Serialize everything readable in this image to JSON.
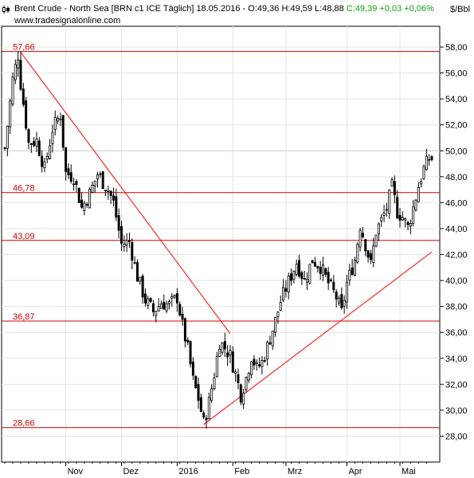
{
  "header": {
    "title": "Brent Crude - North Sea [BRN c1 ICE  Täglich] 18.05.2016 - O:49,36 H:49,59 L:48,88 ",
    "change": "C:49,39 +0,03 +0,06%",
    "source": "www.tradesignalonline.com",
    "unit": "$/Bbl"
  },
  "colors": {
    "candle_up": "#ffffff",
    "candle_down": "#000000",
    "level_line": "#cc0000",
    "trend_line": "#ff0000",
    "change_text": "#12a012"
  },
  "chart_data": {
    "type": "candlestick",
    "ylim": [
      26.0,
      59.6
    ],
    "yticks": [
      28,
      30,
      32,
      34,
      36,
      38,
      40,
      42,
      44,
      46,
      48,
      50,
      52,
      54,
      56,
      58
    ],
    "ytick_labels": [
      "28,00",
      "30,00",
      "32,00",
      "34,00",
      "36,00",
      "38,00",
      "40,00",
      "42,00",
      "44,00",
      "46,00",
      "48,00",
      "50,00",
      "52,00",
      "54,00",
      "56,00",
      "58,00"
    ],
    "months": [
      {
        "label": "Nov",
        "x": 24
      },
      {
        "label": "Dez",
        "x": 45
      },
      {
        "label": "2016",
        "x": 66
      },
      {
        "label": "Feb",
        "x": 87
      },
      {
        "label": "Mrz",
        "x": 107
      },
      {
        "label": "Apr",
        "x": 130
      },
      {
        "label": "Mai",
        "x": 150
      }
    ],
    "xlim": [
      1,
      162
    ],
    "levels": [
      {
        "value": 57.66,
        "label": "57,66"
      },
      {
        "value": 46.78,
        "label": "46,78"
      },
      {
        "value": 43.09,
        "label": "43,09"
      },
      {
        "value": 36.87,
        "label": "36,87"
      },
      {
        "value": 28.66,
        "label": "28,66"
      }
    ],
    "trendlines": [
      {
        "x1": 7,
        "y1": 57.6,
        "x2": 86,
        "y2": 35.9
      },
      {
        "x1": 76,
        "y1": 28.9,
        "x2": 162,
        "y2": 42.2
      }
    ],
    "anchors": [
      [
        1,
        50.2
      ],
      [
        4,
        55.5
      ],
      [
        6,
        57.4
      ],
      [
        7,
        55.2
      ],
      [
        10,
        50.6
      ],
      [
        13,
        50.8
      ],
      [
        16,
        48.6
      ],
      [
        19,
        51.7
      ],
      [
        22,
        52.8
      ],
      [
        24,
        48.3
      ],
      [
        27,
        48.0
      ],
      [
        30,
        45.6
      ],
      [
        33,
        46.7
      ],
      [
        36,
        48.2
      ],
      [
        40,
        47.0
      ],
      [
        42,
        46.0
      ],
      [
        45,
        42.8
      ],
      [
        48,
        43.0
      ],
      [
        51,
        40.3
      ],
      [
        54,
        38.5
      ],
      [
        57,
        37.6
      ],
      [
        60,
        38.3
      ],
      [
        63,
        38.1
      ],
      [
        66,
        38.7
      ],
      [
        68,
        36.5
      ],
      [
        70,
        34.7
      ],
      [
        72,
        32.3
      ],
      [
        74,
        30.9
      ],
      [
        76,
        29.0
      ],
      [
        78,
        30.6
      ],
      [
        80,
        32.8
      ],
      [
        82,
        35.3
      ],
      [
        84,
        34.8
      ],
      [
        86,
        34.2
      ],
      [
        88,
        32.8
      ],
      [
        90,
        31.2
      ],
      [
        92,
        32.5
      ],
      [
        94,
        34.2
      ],
      [
        96,
        33.2
      ],
      [
        98,
        33.7
      ],
      [
        100,
        34.9
      ],
      [
        103,
        36.9
      ],
      [
        105,
        38.4
      ],
      [
        108,
        39.9
      ],
      [
        111,
        41.4
      ],
      [
        114,
        40.0
      ],
      [
        117,
        41.6
      ],
      [
        120,
        41.1
      ],
      [
        123,
        39.8
      ],
      [
        126,
        38.7
      ],
      [
        128,
        37.5
      ],
      [
        130,
        39.8
      ],
      [
        133,
        41.6
      ],
      [
        135,
        44.3
      ],
      [
        137,
        42.8
      ],
      [
        139,
        41.2
      ],
      [
        141,
        43.8
      ],
      [
        143,
        44.6
      ],
      [
        145,
        45.6
      ],
      [
        147,
        47.2
      ],
      [
        149,
        45.3
      ],
      [
        151,
        44.9
      ],
      [
        153,
        44.1
      ],
      [
        155,
        45.6
      ],
      [
        157,
        47.3
      ],
      [
        159,
        48.6
      ],
      [
        161,
        49.4
      ]
    ]
  }
}
